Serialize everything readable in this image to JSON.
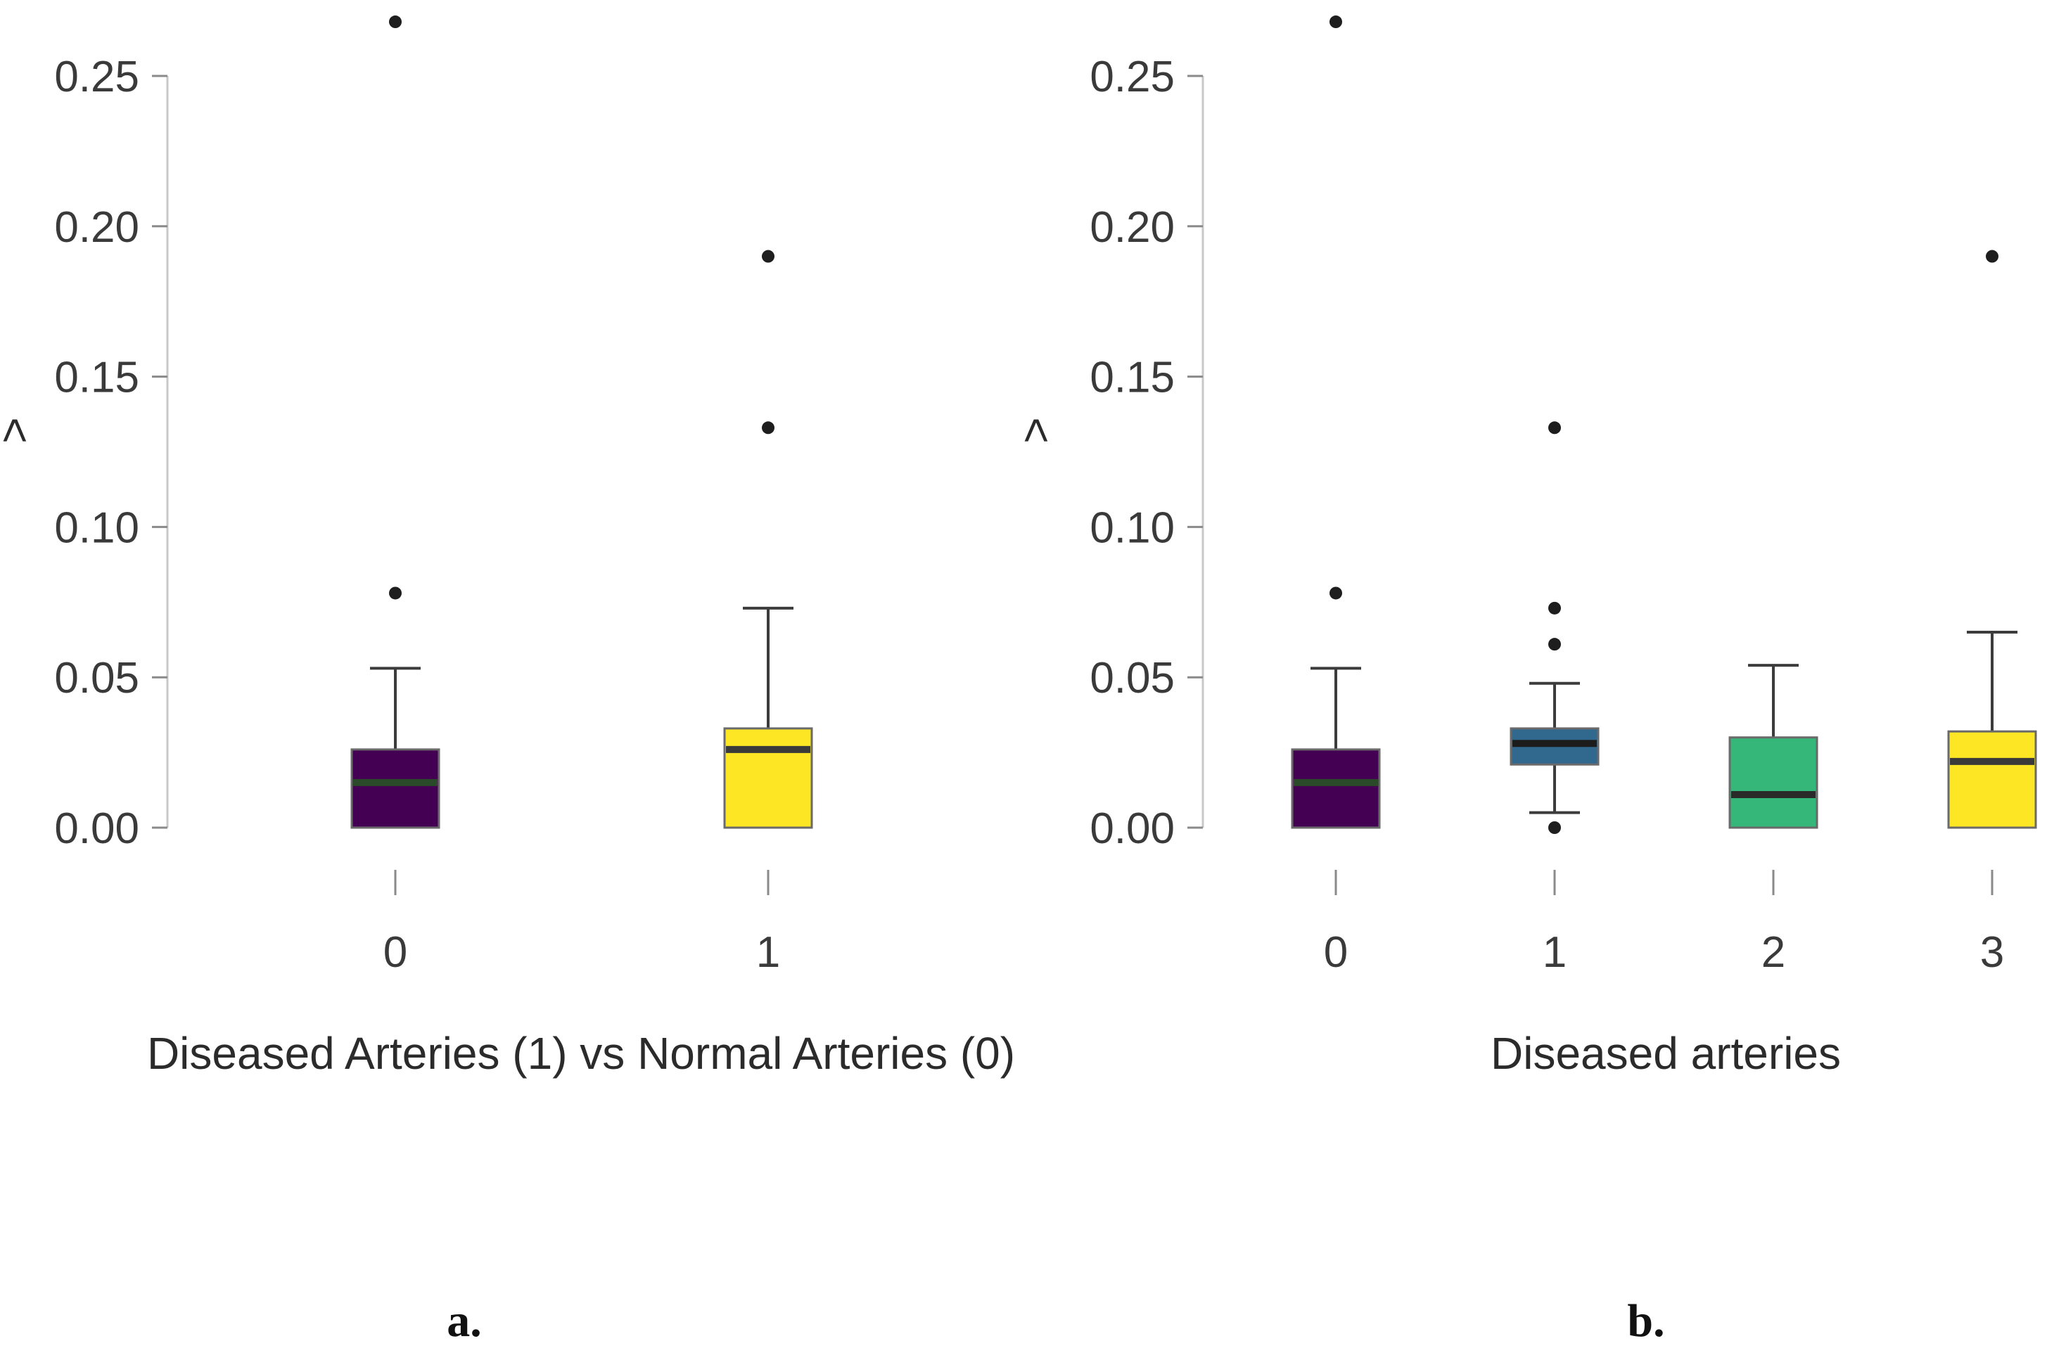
{
  "chart_data": [
    {
      "type": "boxplot",
      "panel_label": "a.",
      "xlabel": "Diseased Arteries (1) vs Normal Arteries (0)",
      "ylabel": ">",
      "ylim": [
        0,
        0.25
      ],
      "yticks": [
        "0.00",
        "0.05",
        "0.10",
        "0.15",
        "0.20",
        "0.25"
      ],
      "yticks_values": [
        0,
        0.05,
        0.1,
        0.15,
        0.2,
        0.25
      ],
      "categories": [
        "0",
        "1"
      ],
      "boxes": [
        {
          "category": "0",
          "color": "#440154",
          "median_color": "#2a4a2a",
          "whisker_low": 0.0,
          "q1": 0.0,
          "median": 0.015,
          "q3": 0.026,
          "whisker_high": 0.053,
          "outliers": [
            0.078,
            0.268
          ]
        },
        {
          "category": "1",
          "color": "#fde725",
          "median_color": "#3a3a3a",
          "whisker_low": 0.0,
          "q1": 0.0,
          "median": 0.026,
          "q3": 0.033,
          "whisker_high": 0.073,
          "outliers": [
            0.133,
            0.19
          ]
        }
      ]
    },
    {
      "type": "boxplot",
      "panel_label": "b.",
      "xlabel": "Diseased arteries",
      "ylabel": ">",
      "ylim": [
        0,
        0.25
      ],
      "yticks": [
        "0.00",
        "0.05",
        "0.10",
        "0.15",
        "0.20",
        "0.25"
      ],
      "yticks_values": [
        0,
        0.05,
        0.1,
        0.15,
        0.2,
        0.25
      ],
      "categories": [
        "0",
        "1",
        "2",
        "3"
      ],
      "boxes": [
        {
          "category": "0",
          "color": "#440154",
          "median_color": "#2a4a2a",
          "whisker_low": 0.0,
          "q1": 0.0,
          "median": 0.015,
          "q3": 0.026,
          "whisker_high": 0.053,
          "outliers": [
            0.078,
            0.268
          ]
        },
        {
          "category": "1",
          "color": "#31688e",
          "median_color": "#1c1c1c",
          "whisker_low": 0.005,
          "q1": 0.021,
          "median": 0.028,
          "q3": 0.033,
          "whisker_high": 0.048,
          "outliers": [
            0.0,
            0.061,
            0.073,
            0.133
          ]
        },
        {
          "category": "2",
          "color": "#35b779",
          "median_color": "#2a2a2a",
          "whisker_low": 0.0,
          "q1": 0.0,
          "median": 0.011,
          "q3": 0.03,
          "whisker_high": 0.054,
          "outliers": []
        },
        {
          "category": "3",
          "color": "#fde725",
          "median_color": "#3a3a3a",
          "whisker_low": 0.0,
          "q1": 0.0,
          "median": 0.022,
          "q3": 0.032,
          "whisker_high": 0.065,
          "outliers": [
            0.19
          ]
        }
      ]
    }
  ]
}
